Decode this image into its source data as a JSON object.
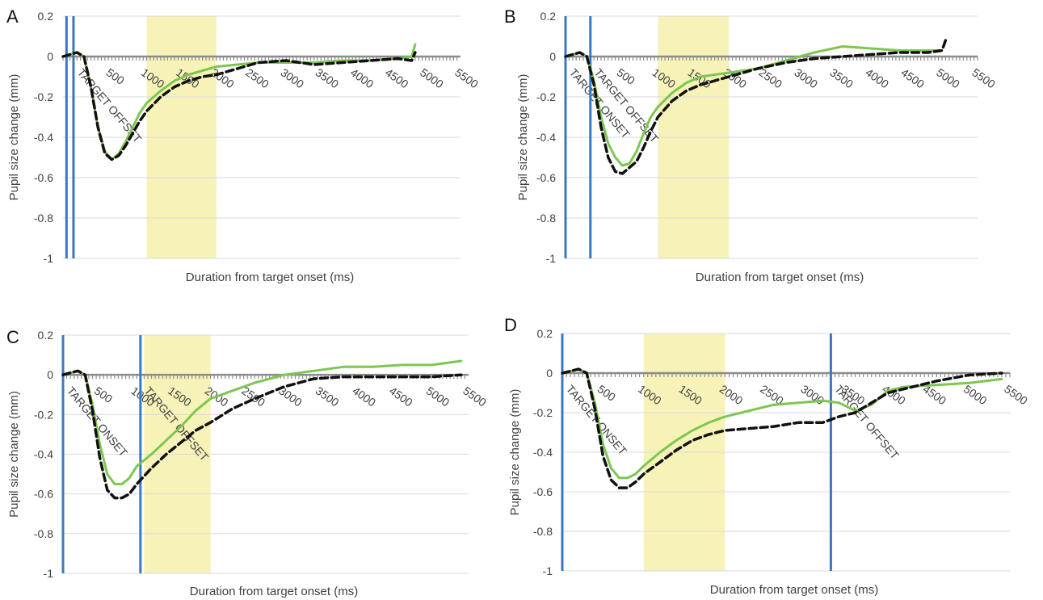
{
  "chart_data": [
    {
      "panel": "A",
      "type": "line",
      "xlabel": "Duration from target onset (ms)",
      "ylabel": "Pupil size change (mm)",
      "xlim": [
        -200,
        5500
      ],
      "ylim": [
        -1,
        0.2
      ],
      "yticks": [
        "0.2",
        "0",
        "-0.2",
        "-0.4",
        "-0.6",
        "-0.8",
        "-1"
      ],
      "xticks": [
        "500",
        "1000",
        "1500",
        "2000",
        "2500",
        "3000",
        "3500",
        "4000",
        "4500",
        "5000",
        "5500"
      ],
      "shaded_region": [
        1000,
        2000
      ],
      "markers": [
        {
          "label": "",
          "x": -150
        },
        {
          "label": "TARGET OFFSET",
          "x": -50
        }
      ],
      "series": [
        {
          "name": "",
          "color": "#7dc64f",
          "style": "solid",
          "x": [
            -200,
            -100,
            0,
            100,
            200,
            300,
            400,
            500,
            600,
            700,
            800,
            900,
            1000,
            1200,
            1400,
            1600,
            1800,
            2000,
            2300,
            2600,
            3000,
            3400,
            3800,
            4200,
            4600,
            4800,
            4850
          ],
          "y": [
            0.0,
            0.01,
            0.02,
            0.0,
            -0.15,
            -0.35,
            -0.47,
            -0.51,
            -0.48,
            -0.42,
            -0.35,
            -0.28,
            -0.23,
            -0.17,
            -0.12,
            -0.09,
            -0.07,
            -0.05,
            -0.04,
            -0.03,
            -0.03,
            -0.03,
            -0.02,
            -0.02,
            -0.01,
            0.0,
            0.06
          ]
        },
        {
          "name": "",
          "color": "#111111",
          "style": "dashed",
          "x": [
            -200,
            -100,
            0,
            100,
            200,
            300,
            400,
            500,
            600,
            700,
            800,
            900,
            1000,
            1200,
            1400,
            1600,
            1800,
            2000,
            2300,
            2600,
            3000,
            3400,
            3800,
            4200,
            4600,
            4800,
            4850
          ],
          "y": [
            0.0,
            0.01,
            0.02,
            0.0,
            -0.15,
            -0.35,
            -0.48,
            -0.51,
            -0.49,
            -0.44,
            -0.38,
            -0.32,
            -0.27,
            -0.2,
            -0.15,
            -0.12,
            -0.1,
            -0.09,
            -0.06,
            -0.03,
            -0.02,
            -0.04,
            -0.03,
            -0.02,
            -0.01,
            -0.02,
            0.02
          ]
        }
      ]
    },
    {
      "panel": "B",
      "type": "line",
      "xlabel": "Duration from target onset (ms)",
      "ylabel": "Pupil size change (mm)",
      "xlim": [
        -300,
        5500
      ],
      "ylim": [
        -1,
        0.2
      ],
      "yticks": [
        "0.2",
        "0",
        "-0.2",
        "-0.4",
        "-0.6",
        "-0.8",
        "-1"
      ],
      "xticks": [
        "500",
        "1000",
        "1500",
        "2000",
        "2500",
        "3000",
        "3500",
        "4000",
        "4500",
        "5000",
        "5500"
      ],
      "shaded_region": [
        1000,
        2000
      ],
      "markers": [
        {
          "label": "TARGET ONSET",
          "x": -300
        },
        {
          "label": "TARGET OFFSET",
          "x": 50
        }
      ],
      "series": [
        {
          "name": "",
          "color": "#7dc64f",
          "style": "solid",
          "x": [
            -300,
            -200,
            -100,
            0,
            100,
            200,
            300,
            400,
            500,
            600,
            700,
            800,
            900,
            1000,
            1200,
            1400,
            1600,
            1800,
            2000,
            2400,
            2800,
            3200,
            3600,
            4000,
            4400,
            4800,
            5000
          ],
          "y": [
            0.0,
            0.01,
            0.02,
            0.0,
            -0.12,
            -0.3,
            -0.43,
            -0.5,
            -0.54,
            -0.53,
            -0.47,
            -0.38,
            -0.3,
            -0.25,
            -0.18,
            -0.13,
            -0.1,
            -0.09,
            -0.08,
            -0.06,
            -0.02,
            0.02,
            0.05,
            0.04,
            0.03,
            0.03,
            0.03
          ]
        },
        {
          "name": "",
          "color": "#111111",
          "style": "dashed",
          "x": [
            -300,
            -200,
            -100,
            0,
            100,
            200,
            300,
            400,
            500,
            600,
            700,
            800,
            900,
            1000,
            1200,
            1400,
            1600,
            1800,
            2000,
            2400,
            2800,
            3200,
            3600,
            4000,
            4400,
            4800,
            5000,
            5050
          ],
          "y": [
            0.0,
            0.01,
            0.02,
            0.0,
            -0.14,
            -0.35,
            -0.5,
            -0.57,
            -0.58,
            -0.55,
            -0.52,
            -0.45,
            -0.37,
            -0.3,
            -0.22,
            -0.17,
            -0.14,
            -0.12,
            -0.1,
            -0.06,
            -0.03,
            -0.01,
            0.0,
            0.01,
            0.02,
            0.02,
            0.03,
            0.08
          ]
        }
      ]
    },
    {
      "panel": "C",
      "type": "line",
      "xlabel": "Duration from target onset (ms)",
      "ylabel": "Pupil size change (mm)",
      "xlim": [
        0,
        5500
      ],
      "ylim": [
        -1,
        0.2
      ],
      "yticks": [
        "0.2",
        "0",
        "-0.2",
        "-0.4",
        "-0.6",
        "-0.8",
        "-1"
      ],
      "xticks": [
        "500",
        "1000",
        "1500",
        "2000",
        "2500",
        "3000",
        "3500",
        "4000",
        "4500",
        "5000",
        "5500"
      ],
      "shaded_region": [
        1100,
        2000
      ],
      "markers": [
        {
          "label": "TARGET ONSET",
          "x": 0
        },
        {
          "label": "TARGET OFFSET",
          "x": 1050
        }
      ],
      "series": [
        {
          "name": "",
          "color": "#7dc64f",
          "style": "solid",
          "x": [
            0,
            100,
            200,
            300,
            400,
            500,
            600,
            700,
            800,
            900,
            1000,
            1200,
            1400,
            1600,
            1800,
            2000,
            2300,
            2600,
            3000,
            3400,
            3800,
            4200,
            4600,
            5000,
            5400
          ],
          "y": [
            0.0,
            0.01,
            0.02,
            0.0,
            -0.15,
            -0.35,
            -0.5,
            -0.55,
            -0.55,
            -0.52,
            -0.46,
            -0.4,
            -0.33,
            -0.26,
            -0.18,
            -0.12,
            -0.08,
            -0.04,
            0.0,
            0.02,
            0.04,
            0.04,
            0.05,
            0.05,
            0.07
          ]
        },
        {
          "name": "",
          "color": "#111111",
          "style": "dashed",
          "x": [
            0,
            100,
            200,
            300,
            400,
            500,
            600,
            700,
            800,
            900,
            1000,
            1200,
            1400,
            1600,
            1800,
            2000,
            2300,
            2600,
            3000,
            3400,
            3800,
            4200,
            4600,
            5000,
            5400
          ],
          "y": [
            0.0,
            0.01,
            0.02,
            0.0,
            -0.18,
            -0.42,
            -0.58,
            -0.62,
            -0.62,
            -0.6,
            -0.55,
            -0.47,
            -0.4,
            -0.34,
            -0.28,
            -0.24,
            -0.17,
            -0.12,
            -0.06,
            -0.02,
            -0.01,
            -0.01,
            -0.01,
            -0.01,
            0.0
          ]
        }
      ]
    },
    {
      "panel": "D",
      "type": "line",
      "xlabel": "Duration from target onset (ms)",
      "ylabel": "Pupil size change (mm)",
      "xlim": [
        0,
        5500
      ],
      "ylim": [
        -1,
        0.2
      ],
      "yticks": [
        "0.2",
        "0",
        "-0.2",
        "-0.4",
        "-0.6",
        "-0.8",
        "-1"
      ],
      "xticks": [
        "500",
        "1000",
        "1500",
        "2000",
        "2500",
        "3000",
        "3500",
        "4000",
        "4500",
        "5000",
        "5500"
      ],
      "shaded_region": [
        1000,
        2000
      ],
      "markers": [
        {
          "label": "TARGET ONSET",
          "x": 0
        },
        {
          "label": "TARGET OFFSET",
          "x": 3300
        }
      ],
      "series": [
        {
          "name": "",
          "color": "#7dc64f",
          "style": "solid",
          "x": [
            0,
            100,
            200,
            300,
            400,
            500,
            600,
            700,
            800,
            900,
            1000,
            1200,
            1400,
            1600,
            1800,
            2000,
            2300,
            2600,
            2900,
            3200,
            3400,
            3600,
            3800,
            4000,
            4200,
            4600,
            5000,
            5400
          ],
          "y": [
            0.0,
            0.01,
            0.02,
            0.0,
            -0.15,
            -0.36,
            -0.48,
            -0.53,
            -0.53,
            -0.51,
            -0.47,
            -0.4,
            -0.34,
            -0.29,
            -0.25,
            -0.22,
            -0.19,
            -0.16,
            -0.15,
            -0.14,
            -0.15,
            -0.19,
            -0.16,
            -0.09,
            -0.07,
            -0.06,
            -0.05,
            -0.03
          ]
        },
        {
          "name": "",
          "color": "#111111",
          "style": "dashed",
          "x": [
            0,
            100,
            200,
            300,
            400,
            500,
            600,
            700,
            800,
            900,
            1000,
            1200,
            1400,
            1600,
            1800,
            2000,
            2300,
            2600,
            2900,
            3200,
            3400,
            3600,
            3800,
            4000,
            4200,
            4600,
            5000,
            5400
          ],
          "y": [
            0.0,
            0.01,
            0.02,
            0.0,
            -0.18,
            -0.42,
            -0.54,
            -0.58,
            -0.58,
            -0.55,
            -0.51,
            -0.45,
            -0.39,
            -0.34,
            -0.31,
            -0.29,
            -0.28,
            -0.27,
            -0.25,
            -0.25,
            -0.22,
            -0.2,
            -0.15,
            -0.1,
            -0.08,
            -0.04,
            -0.01,
            0.0
          ]
        }
      ]
    }
  ]
}
